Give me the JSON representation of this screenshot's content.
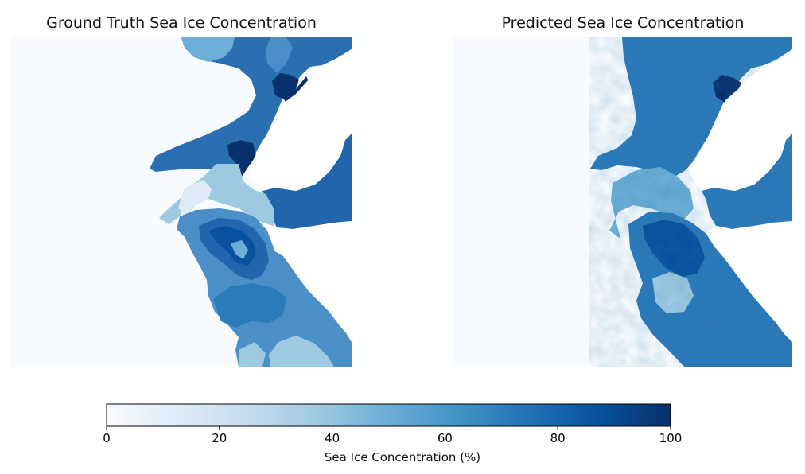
{
  "chart_data": {
    "type": "heatmap",
    "panels": [
      {
        "title": "Ground Truth Sea Ice Concentration"
      },
      {
        "title": "Predicted Sea Ice Concentration"
      }
    ],
    "colorbar": {
      "label": "Sea Ice Concentration (%)",
      "range": [
        0,
        100
      ],
      "ticks": [
        0,
        20,
        40,
        60,
        80,
        100
      ],
      "colormap": "Blues",
      "orientation": "horizontal"
    },
    "colormap_stops": [
      "#f7fbff",
      "#deebf7",
      "#c6dbef",
      "#9ecae1",
      "#6baed6",
      "#4292c6",
      "#2171b5",
      "#08519c",
      "#08306b"
    ]
  }
}
